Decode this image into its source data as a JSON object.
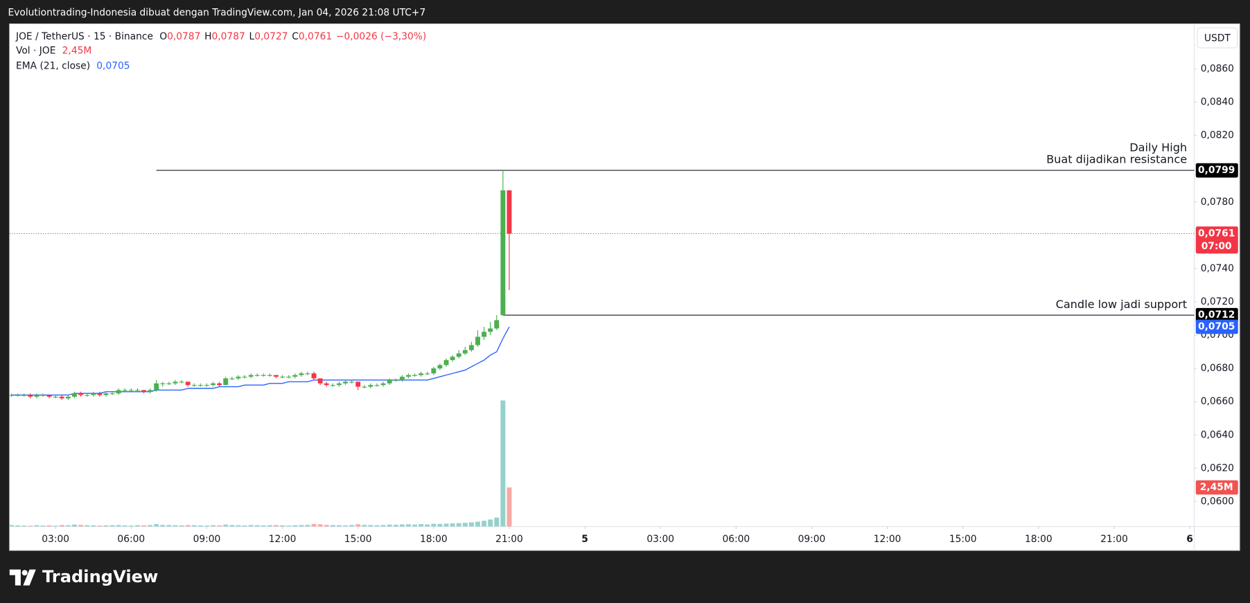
{
  "caption": "Evolutiontrading-Indonesia dibuat dengan TradingView.com, Jan 04, 2026 21:08 UTC+7",
  "brand": "TradingView",
  "chart_data": {
    "type": "candlestick",
    "title": "JOE / TetherUS · 15 · Binance",
    "ohlc_names": [
      "O",
      "H",
      "L",
      "C"
    ],
    "ohlc_labels": [
      "0,0787",
      "0,0787",
      "0,0727",
      "0,0761"
    ],
    "change_label": "−0,0026 (−3,30%)",
    "currency": "USDT",
    "up_color": "#4caf50",
    "down_color": "#f23645",
    "ylim": [
      0.0585,
      0.0887
    ],
    "yticks": [
      {
        "value": 0.06,
        "label": "0,0600"
      },
      {
        "value": 0.062,
        "label": "0,0620"
      },
      {
        "value": 0.064,
        "label": "0,0640"
      },
      {
        "value": 0.066,
        "label": "0,0660"
      },
      {
        "value": 0.068,
        "label": "0,0680"
      },
      {
        "value": 0.07,
        "label": "0,0700"
      },
      {
        "value": 0.072,
        "label": "0,0720"
      },
      {
        "value": 0.074,
        "label": "0,0740"
      },
      {
        "value": 0.078,
        "label": "0,0780"
      },
      {
        "value": 0.082,
        "label": "0,0820"
      },
      {
        "value": 0.084,
        "label": "0,0840"
      },
      {
        "value": 0.086,
        "label": "0,0860"
      }
    ],
    "xlim": [
      -0.3,
      187.7
    ],
    "xticks": [
      {
        "value": 7,
        "label": "03:00"
      },
      {
        "value": 19,
        "label": "06:00"
      },
      {
        "value": 31,
        "label": "09:00"
      },
      {
        "value": 43,
        "label": "12:00"
      },
      {
        "value": 55,
        "label": "15:00"
      },
      {
        "value": 67,
        "label": "18:00"
      },
      {
        "value": 79,
        "label": "21:00"
      },
      {
        "value": 91,
        "label": "5",
        "major": true
      },
      {
        "value": 103,
        "label": "03:00"
      },
      {
        "value": 115,
        "label": "06:00"
      },
      {
        "value": 127,
        "label": "09:00"
      },
      {
        "value": 139,
        "label": "12:00"
      },
      {
        "value": 151,
        "label": "15:00"
      },
      {
        "value": 163,
        "label": "18:00"
      },
      {
        "value": 175,
        "label": "21:00"
      },
      {
        "value": 187,
        "label": "6",
        "major": true
      }
    ],
    "grid": false,
    "ohlc": [
      [
        0.0664,
        0.0665,
        0.0663,
        0.0664
      ],
      [
        0.0664,
        0.0665,
        0.0663,
        0.0664
      ],
      [
        0.0664,
        0.0665,
        0.0663,
        0.0664
      ],
      [
        0.0664,
        0.0665,
        0.0662,
        0.0663
      ],
      [
        0.0663,
        0.0665,
        0.0662,
        0.0664
      ],
      [
        0.0664,
        0.0665,
        0.0663,
        0.0664
      ],
      [
        0.0664,
        0.0664,
        0.0662,
        0.0663
      ],
      [
        0.0663,
        0.0664,
        0.0662,
        0.0663
      ],
      [
        0.0663,
        0.0664,
        0.0661,
        0.0662
      ],
      [
        0.0662,
        0.0664,
        0.0661,
        0.0663
      ],
      [
        0.0663,
        0.0666,
        0.0662,
        0.0665
      ],
      [
        0.0665,
        0.0666,
        0.0663,
        0.0664
      ],
      [
        0.0664,
        0.0665,
        0.0663,
        0.0664
      ],
      [
        0.0664,
        0.0666,
        0.0663,
        0.0665
      ],
      [
        0.0665,
        0.0666,
        0.0663,
        0.0664
      ],
      [
        0.0664,
        0.0666,
        0.0663,
        0.0665
      ],
      [
        0.0665,
        0.0666,
        0.0664,
        0.0665
      ],
      [
        0.0665,
        0.0668,
        0.0664,
        0.0667
      ],
      [
        0.0667,
        0.0668,
        0.0666,
        0.0667
      ],
      [
        0.0667,
        0.0668,
        0.0666,
        0.0667
      ],
      [
        0.0667,
        0.0668,
        0.0666,
        0.0667
      ],
      [
        0.0667,
        0.0667,
        0.0665,
        0.0666
      ],
      [
        0.0666,
        0.0668,
        0.0665,
        0.0667
      ],
      [
        0.0667,
        0.0673,
        0.0666,
        0.0671
      ],
      [
        0.0671,
        0.0672,
        0.0669,
        0.0671
      ],
      [
        0.0671,
        0.0672,
        0.067,
        0.0671
      ],
      [
        0.0671,
        0.0673,
        0.067,
        0.0672
      ],
      [
        0.0672,
        0.0673,
        0.0671,
        0.0672
      ],
      [
        0.0672,
        0.0672,
        0.0669,
        0.067
      ],
      [
        0.067,
        0.0671,
        0.0669,
        0.067
      ],
      [
        0.067,
        0.0671,
        0.0669,
        0.067
      ],
      [
        0.067,
        0.0671,
        0.0669,
        0.067
      ],
      [
        0.067,
        0.0672,
        0.0669,
        0.0671
      ],
      [
        0.0671,
        0.0672,
        0.0669,
        0.067
      ],
      [
        0.067,
        0.0675,
        0.067,
        0.0674
      ],
      [
        0.0674,
        0.0675,
        0.0673,
        0.0674
      ],
      [
        0.0674,
        0.0676,
        0.0673,
        0.0675
      ],
      [
        0.0675,
        0.0676,
        0.0674,
        0.0675
      ],
      [
        0.0675,
        0.0677,
        0.0674,
        0.0676
      ],
      [
        0.0676,
        0.0677,
        0.0675,
        0.0676
      ],
      [
        0.0676,
        0.0677,
        0.0675,
        0.0676
      ],
      [
        0.0676,
        0.0677,
        0.0675,
        0.0676
      ],
      [
        0.0676,
        0.0676,
        0.0674,
        0.0675
      ],
      [
        0.0675,
        0.0676,
        0.0674,
        0.0675
      ],
      [
        0.0675,
        0.0676,
        0.0674,
        0.0675
      ],
      [
        0.0675,
        0.0677,
        0.0674,
        0.0676
      ],
      [
        0.0676,
        0.0678,
        0.0675,
        0.0677
      ],
      [
        0.0677,
        0.0678,
        0.0676,
        0.0677
      ],
      [
        0.0677,
        0.0678,
        0.0673,
        0.0674
      ],
      [
        0.0674,
        0.0674,
        0.067,
        0.0671
      ],
      [
        0.0671,
        0.0672,
        0.0669,
        0.067
      ],
      [
        0.067,
        0.0671,
        0.0669,
        0.067
      ],
      [
        0.067,
        0.0672,
        0.0669,
        0.0671
      ],
      [
        0.0671,
        0.0673,
        0.067,
        0.0672
      ],
      [
        0.0672,
        0.0673,
        0.0671,
        0.0672
      ],
      [
        0.0672,
        0.0672,
        0.0667,
        0.0669
      ],
      [
        0.0669,
        0.067,
        0.0668,
        0.0669
      ],
      [
        0.0669,
        0.0671,
        0.0668,
        0.067
      ],
      [
        0.067,
        0.0671,
        0.0669,
        0.067
      ],
      [
        0.067,
        0.0672,
        0.0669,
        0.0671
      ],
      [
        0.0671,
        0.0674,
        0.067,
        0.0673
      ],
      [
        0.0673,
        0.0674,
        0.0672,
        0.0673
      ],
      [
        0.0673,
        0.0676,
        0.0672,
        0.0675
      ],
      [
        0.0675,
        0.0677,
        0.0674,
        0.0676
      ],
      [
        0.0676,
        0.0677,
        0.0675,
        0.0676
      ],
      [
        0.0676,
        0.0678,
        0.0675,
        0.0677
      ],
      [
        0.0677,
        0.0678,
        0.0676,
        0.0677
      ],
      [
        0.0677,
        0.0681,
        0.0676,
        0.068
      ],
      [
        0.068,
        0.0683,
        0.0679,
        0.0682
      ],
      [
        0.0682,
        0.0686,
        0.0681,
        0.0685
      ],
      [
        0.0685,
        0.0688,
        0.0684,
        0.0687
      ],
      [
        0.0687,
        0.0691,
        0.0686,
        0.0689
      ],
      [
        0.0689,
        0.0693,
        0.0688,
        0.0691
      ],
      [
        0.0691,
        0.0696,
        0.069,
        0.0694
      ],
      [
        0.0694,
        0.0703,
        0.0693,
        0.0699
      ],
      [
        0.0699,
        0.0705,
        0.0697,
        0.0702
      ],
      [
        0.0702,
        0.0708,
        0.07,
        0.0704
      ],
      [
        0.0704,
        0.0712,
        0.0703,
        0.0709
      ],
      [
        0.0712,
        0.0799,
        0.0712,
        0.0787
      ],
      [
        0.0787,
        0.0787,
        0.0727,
        0.0761
      ]
    ],
    "volume": {
      "name": "Vol · JOE",
      "up_color": "#93d2cb",
      "down_color": "#f7a9a7",
      "vlim": [
        0,
        31500000
      ],
      "values": [
        90000,
        70000,
        60000,
        50000,
        80000,
        60000,
        70000,
        50000,
        90000,
        80000,
        120000,
        100000,
        80000,
        70000,
        60000,
        70000,
        80000,
        90000,
        70000,
        60000,
        80000,
        70000,
        90000,
        150000,
        100000,
        90000,
        80000,
        70000,
        90000,
        80000,
        70000,
        60000,
        80000,
        70000,
        120000,
        90000,
        80000,
        70000,
        90000,
        80000,
        70000,
        80000,
        90000,
        70000,
        60000,
        80000,
        90000,
        100000,
        160000,
        140000,
        100000,
        90000,
        80000,
        70000,
        90000,
        140000,
        100000,
        90000,
        80000,
        90000,
        120000,
        110000,
        130000,
        140000,
        120000,
        150000,
        130000,
        170000,
        160000,
        180000,
        200000,
        210000,
        230000,
        260000,
        300000,
        360000,
        440000,
        560000,
        7900000,
        2450000
      ],
      "value_labels": [
        null,
        null,
        null,
        null,
        null,
        null,
        null,
        null,
        null,
        null,
        null,
        null,
        null,
        null,
        null,
        null,
        null,
        null,
        null,
        null,
        null,
        null,
        null,
        null,
        null,
        null,
        null,
        null,
        null,
        null,
        null,
        null,
        null,
        null,
        null,
        null,
        null,
        null,
        null,
        null,
        null,
        null,
        null,
        null,
        null,
        null,
        null,
        null,
        null,
        null,
        null,
        null,
        null,
        null,
        null,
        null,
        null,
        null,
        null,
        null,
        null,
        null,
        null,
        null,
        null,
        null,
        null,
        null,
        null,
        null,
        null,
        null,
        null,
        null,
        null,
        null,
        null,
        null,
        null,
        "2,45M"
      ]
    },
    "ema": {
      "name": "EMA (21, close)",
      "color": "#2962ff",
      "value_label": "0,0705",
      "values": [
        0.0664,
        0.0664,
        0.0664,
        0.0664,
        0.0664,
        0.0664,
        0.0664,
        0.0664,
        0.0664,
        0.0664,
        0.0665,
        0.0665,
        0.0665,
        0.0665,
        0.0665,
        0.0666,
        0.0666,
        0.0666,
        0.0666,
        0.0666,
        0.0666,
        0.0666,
        0.0666,
        0.0667,
        0.0667,
        0.0667,
        0.0667,
        0.0667,
        0.0668,
        0.0668,
        0.0668,
        0.0668,
        0.0668,
        0.0669,
        0.0669,
        0.0669,
        0.0669,
        0.067,
        0.067,
        0.067,
        0.067,
        0.0671,
        0.0671,
        0.0671,
        0.0672,
        0.0672,
        0.0672,
        0.0672,
        0.0673,
        0.0673,
        0.0673,
        0.0673,
        0.0673,
        0.0673,
        0.0673,
        0.0673,
        0.0673,
        0.0673,
        0.0673,
        0.0673,
        0.0673,
        0.0673,
        0.0673,
        0.0673,
        0.0673,
        0.0673,
        0.0673,
        0.0674,
        0.0675,
        0.0676,
        0.0677,
        0.0678,
        0.0679,
        0.0681,
        0.0683,
        0.0685,
        0.0688,
        0.069,
        0.0698,
        0.0705
      ]
    },
    "last_price": {
      "value": 0.0761,
      "label": "0,0761",
      "countdown": "07:00",
      "color": "#f23645"
    },
    "hlines": [
      {
        "value": 0.0799,
        "label": "0,0799",
        "start": 23,
        "text": [
          "Daily High",
          "Buat dijadikan resistance"
        ]
      },
      {
        "value": 0.0712,
        "label": "0,0712",
        "start": 78,
        "text": [
          "Candle low jadi support"
        ]
      }
    ]
  }
}
